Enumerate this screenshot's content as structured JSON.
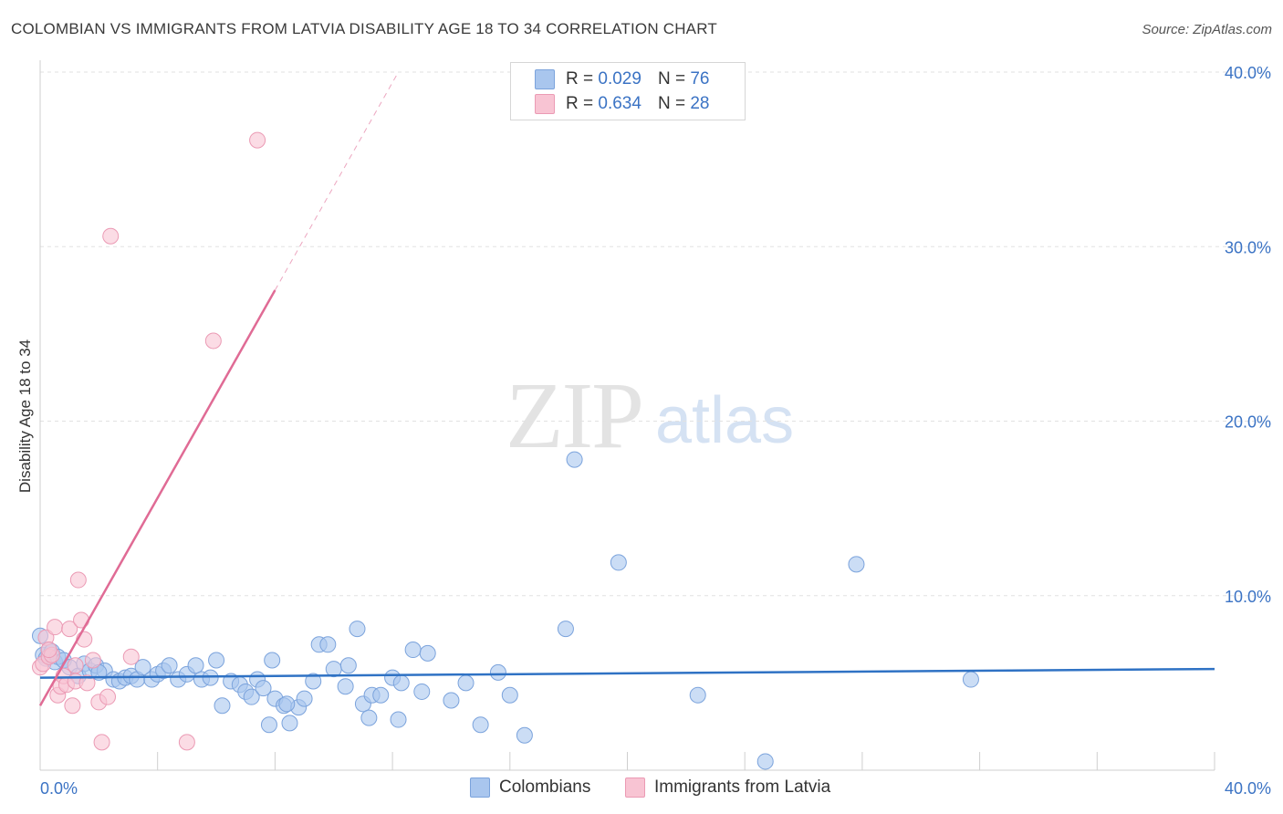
{
  "title": "COLOMBIAN VS IMMIGRANTS FROM LATVIA DISABILITY AGE 18 TO 34 CORRELATION CHART",
  "source": "Source: ZipAtlas.com",
  "watermark": {
    "zip": "ZIP",
    "atlas": "atlas"
  },
  "legend": {
    "r_label": "R =",
    "n_label": "N =",
    "rows": [
      {
        "r": "0.029",
        "n": "76"
      },
      {
        "r": "0.634",
        "n": "28"
      }
    ]
  },
  "colors": {
    "blue_fill": "#a9c6ee",
    "blue_stroke": "#7ba3dc",
    "blue_line": "#2f72c4",
    "pink_fill": "#f8c4d3",
    "pink_stroke": "#eb9ab4",
    "pink_line": "#e06b95",
    "tick_text": "#3b73c4",
    "grid": "#e2e2e2"
  },
  "chart_data": {
    "type": "scatter",
    "ylabel": "Disability Age 18 to 34",
    "xlim": [
      0,
      40
    ],
    "ylim": [
      0,
      40
    ],
    "x_ticks": [
      "0.0%",
      "40.0%"
    ],
    "y_ticks": [
      {
        "value": 10,
        "label": "10.0%"
      },
      {
        "value": 20,
        "label": "20.0%"
      },
      {
        "value": 30,
        "label": "30.0%"
      },
      {
        "value": 40,
        "label": "40.0%"
      }
    ],
    "legend_position": "top-center",
    "series": [
      {
        "name": "Colombians",
        "color": "#a9c6ee",
        "r": 0.029,
        "n": 76,
        "trend": {
          "x0": 0,
          "y0": 5.3,
          "x1": 40,
          "y1": 5.8,
          "dashed_from": null
        },
        "points": [
          [
            0.0,
            7.7
          ],
          [
            0.1,
            6.6
          ],
          [
            0.2,
            6.4
          ],
          [
            0.3,
            6.9
          ],
          [
            0.4,
            6.8
          ],
          [
            0.5,
            6.2
          ],
          [
            0.6,
            6.5
          ],
          [
            0.8,
            6.3
          ],
          [
            1.0,
            5.9
          ],
          [
            1.3,
            5.4
          ],
          [
            1.5,
            6.1
          ],
          [
            1.7,
            5.7
          ],
          [
            1.9,
            6.0
          ],
          [
            2.2,
            5.7
          ],
          [
            2.5,
            5.2
          ],
          [
            2.7,
            5.1
          ],
          [
            2.9,
            5.3
          ],
          [
            3.1,
            5.4
          ],
          [
            3.3,
            5.2
          ],
          [
            3.5,
            5.9
          ],
          [
            3.8,
            5.2
          ],
          [
            4.0,
            5.5
          ],
          [
            4.2,
            5.7
          ],
          [
            4.4,
            6.0
          ],
          [
            4.7,
            5.2
          ],
          [
            5.0,
            5.5
          ],
          [
            5.3,
            6.0
          ],
          [
            5.5,
            5.2
          ],
          [
            5.8,
            5.3
          ],
          [
            6.0,
            6.3
          ],
          [
            6.2,
            3.7
          ],
          [
            6.5,
            5.1
          ],
          [
            6.8,
            4.9
          ],
          [
            7.0,
            4.5
          ],
          [
            7.2,
            4.2
          ],
          [
            7.4,
            5.2
          ],
          [
            7.6,
            4.7
          ],
          [
            7.8,
            2.6
          ],
          [
            8.0,
            4.1
          ],
          [
            8.3,
            3.7
          ],
          [
            8.5,
            2.7
          ],
          [
            8.8,
            3.6
          ],
          [
            9.0,
            4.1
          ],
          [
            9.3,
            5.1
          ],
          [
            9.5,
            7.2
          ],
          [
            9.8,
            7.2
          ],
          [
            10.0,
            5.8
          ],
          [
            10.4,
            4.8
          ],
          [
            10.5,
            6.0
          ],
          [
            10.8,
            8.1
          ],
          [
            11.0,
            3.8
          ],
          [
            11.3,
            4.3
          ],
          [
            11.6,
            4.3
          ],
          [
            12.0,
            5.3
          ],
          [
            12.3,
            5.0
          ],
          [
            12.7,
            6.9
          ],
          [
            13.0,
            4.5
          ],
          [
            13.2,
            6.7
          ],
          [
            14.0,
            4.0
          ],
          [
            14.5,
            5.0
          ],
          [
            15.0,
            2.6
          ],
          [
            15.6,
            5.6
          ],
          [
            16.0,
            4.3
          ],
          [
            16.5,
            2.0
          ],
          [
            18.2,
            17.8
          ],
          [
            7.9,
            6.3
          ],
          [
            19.7,
            11.9
          ],
          [
            12.2,
            2.9
          ],
          [
            11.2,
            3.0
          ],
          [
            17.9,
            8.1
          ],
          [
            22.4,
            4.3
          ],
          [
            24.7,
            0.5
          ],
          [
            27.8,
            11.8
          ],
          [
            31.7,
            5.2
          ],
          [
            8.4,
            3.8
          ],
          [
            2.0,
            5.6
          ]
        ]
      },
      {
        "name": "Immigrants from Latvia",
        "color": "#f8c4d3",
        "r": 0.634,
        "n": 28,
        "trend": {
          "x0": 0,
          "y0": 3.7,
          "x1": 12.2,
          "y1": 40,
          "solid_until_x": 8.0
        },
        "points": [
          [
            0.0,
            5.9
          ],
          [
            0.1,
            6.1
          ],
          [
            0.2,
            7.6
          ],
          [
            0.3,
            6.5
          ],
          [
            0.4,
            6.6
          ],
          [
            0.5,
            8.2
          ],
          [
            0.6,
            4.3
          ],
          [
            0.7,
            4.8
          ],
          [
            0.8,
            5.4
          ],
          [
            0.9,
            4.9
          ],
          [
            1.0,
            8.1
          ],
          [
            1.1,
            3.7
          ],
          [
            1.2,
            5.1
          ],
          [
            1.3,
            10.9
          ],
          [
            1.4,
            8.6
          ],
          [
            1.5,
            7.5
          ],
          [
            1.6,
            5.0
          ],
          [
            1.8,
            6.3
          ],
          [
            2.0,
            3.9
          ],
          [
            2.1,
            1.6
          ],
          [
            2.3,
            4.2
          ],
          [
            3.1,
            6.5
          ],
          [
            5.0,
            1.6
          ],
          [
            5.9,
            24.6
          ],
          [
            7.4,
            36.1
          ],
          [
            2.4,
            30.6
          ],
          [
            1.2,
            6.0
          ],
          [
            0.3,
            6.9
          ]
        ]
      }
    ]
  },
  "bottom_legend": [
    "Colombians",
    "Immigrants from Latvia"
  ]
}
